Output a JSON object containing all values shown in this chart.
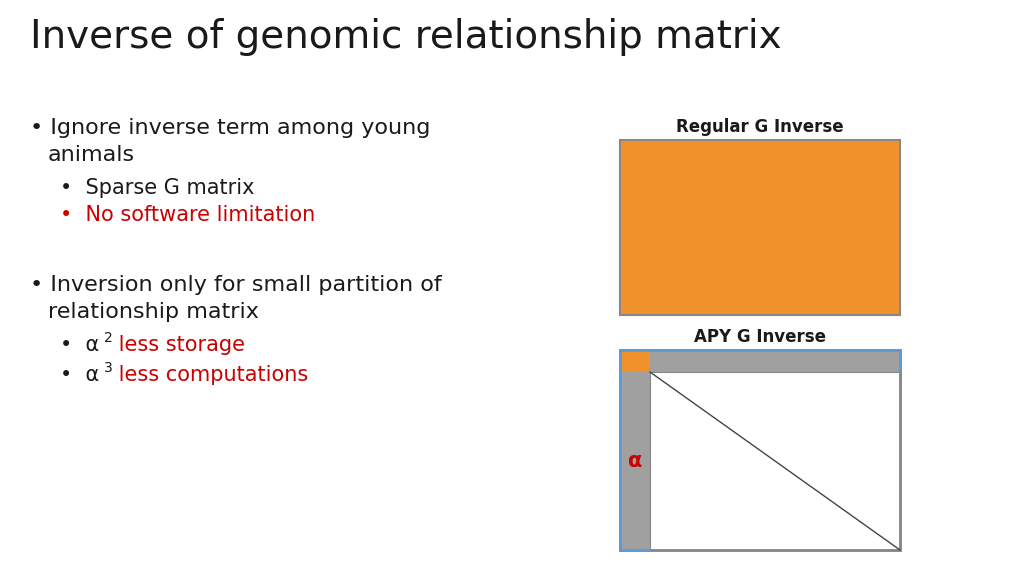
{
  "title": "Inverse of genomic relationship matrix",
  "title_fontsize": 28,
  "background_color": "#ffffff",
  "text_color": "#1a1a1a",
  "red_color": "#cc0000",
  "bullet1_sub1": "Sparse G matrix",
  "bullet1_sub1_color": "#1a1a1a",
  "bullet1_sub2": "No software limitation",
  "bullet1_sub2_color": "#cc0000",
  "label_regular": "Regular G Inverse",
  "label_apy": "APY G Inverse",
  "orange_color": "#F0922B",
  "gray_color": "#A0A0A0",
  "blue_border_color": "#5B9BD5",
  "alpha_label_color": "#cc0000"
}
